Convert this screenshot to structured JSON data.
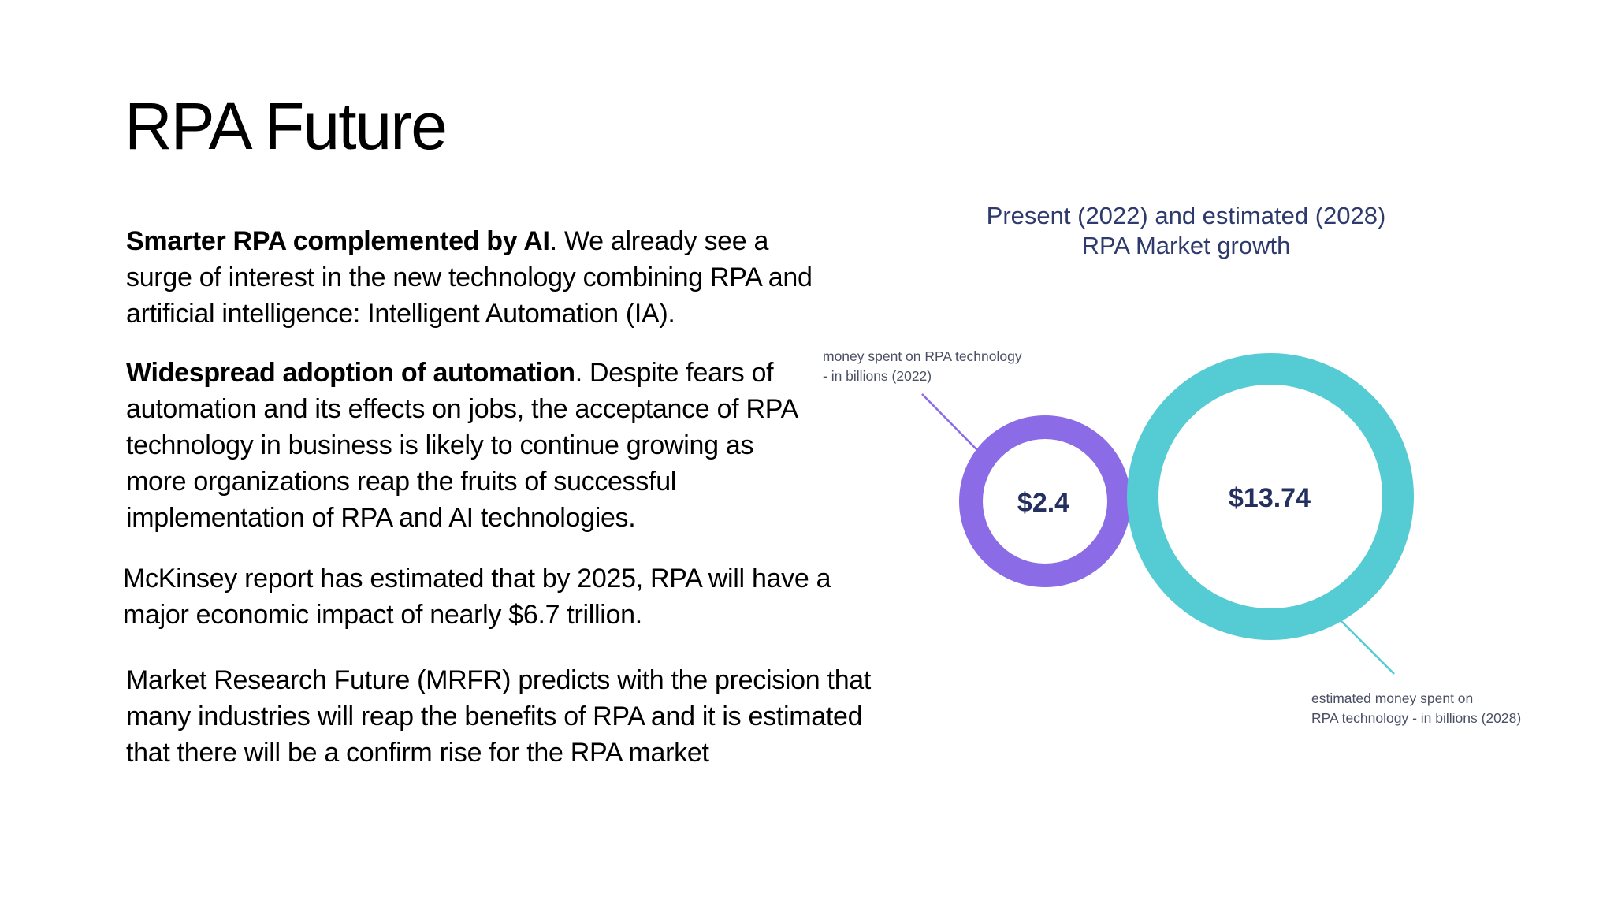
{
  "slide": {
    "title": "RPA Future"
  },
  "paragraphs": [
    {
      "bold": "Smarter RPA complemented by AI",
      "text": ". We already see a surge of interest in the new technology combining RPA and artificial intelligence: Intelligent Automation (IA)."
    },
    {
      "bold": "Widespread adoption of automation",
      "text": ". Despite fears of automation and its effects on jobs, the acceptance of RPA technology in business is likely to continue growing as more organizations reap the fruits of successful implementation of RPA and AI technologies."
    },
    {
      "text": "McKinsey report has estimated that by 2025, RPA will have a major economic impact of nearly $6.7 trillion."
    },
    {
      "text": "Market Research Future (MRFR) predicts with the precision that many industries will reap the benefits of RPA and it is estimated that there will be a confirm rise for the RPA market"
    }
  ],
  "chart_data": {
    "type": "bubble",
    "title_line1": "Present (2022) and estimated (2028)",
    "title_line2": "RPA Market growth",
    "series": [
      {
        "year": 2022,
        "value": 2.4,
        "display": "$2.4",
        "label_line1": "money spent on RPA technology",
        "label_line2": "- in billions  (2022)",
        "color": "#8b6be6"
      },
      {
        "year": 2028,
        "value": 13.74,
        "display": "$13.74",
        "label_line1": "estimated money spent on",
        "label_line2": "RPA technology - in billions  (2028)",
        "color": "#55cbd3"
      }
    ],
    "value_text_color": "#24305e",
    "title_color": "#2e3a6b",
    "label_color": "#4a4f63"
  }
}
